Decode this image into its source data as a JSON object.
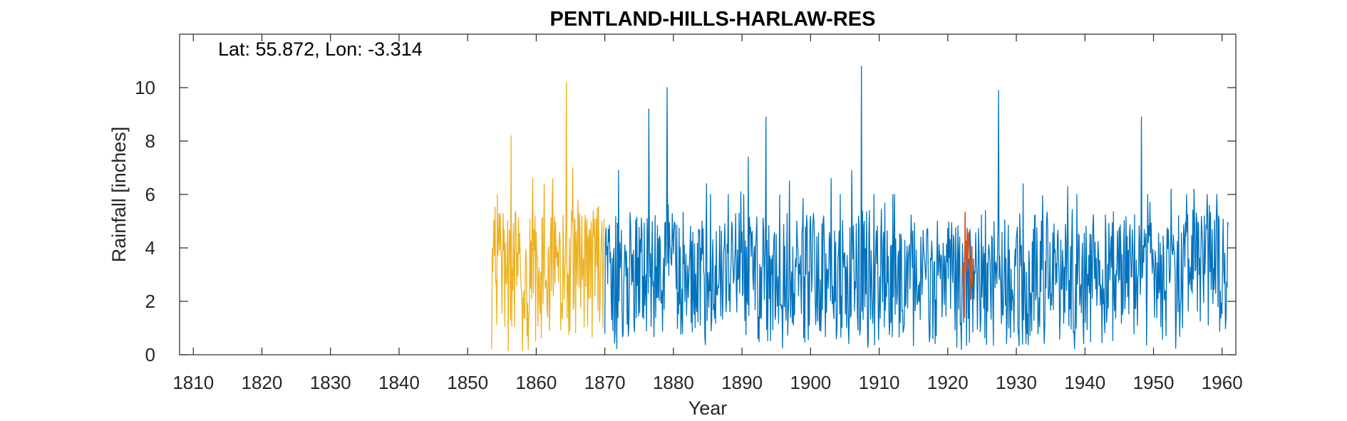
{
  "chart_data": {
    "type": "line",
    "title": "PENTLAND-HILLS-HARLAW-RES",
    "xlabel": "Year",
    "ylabel": "Rainfall [inches]",
    "annotation": "Lat: 55.872, Lon: -3.314",
    "xlim": [
      1808,
      1962
    ],
    "ylim": [
      0,
      12
    ],
    "xticks": [
      1810,
      1820,
      1830,
      1840,
      1850,
      1860,
      1870,
      1880,
      1890,
      1900,
      1910,
      1920,
      1930,
      1940,
      1950,
      1960
    ],
    "yticks": [
      0,
      2,
      4,
      6,
      8,
      10
    ],
    "grid": false,
    "legend": "none",
    "series": [
      {
        "color": "#EDB120",
        "x_range": [
          1853.5,
          1869.9
        ],
        "samples_per_year": 12,
        "mean": 2.9,
        "peaks": [
          [
            1854.3,
            6.0
          ],
          [
            1855.2,
            5.3
          ],
          [
            1855.9,
            0.15
          ],
          [
            1856.3,
            8.2
          ],
          [
            1858.8,
            0.2
          ],
          [
            1859.5,
            6.6
          ],
          [
            1861.2,
            6.4
          ],
          [
            1862.4,
            6.6
          ],
          [
            1864.4,
            10.2
          ],
          [
            1865.3,
            7.0
          ],
          [
            1866.1,
            5.8
          ],
          [
            1868.3,
            5.4
          ]
        ]
      },
      {
        "color": "#0072BD",
        "x_range": [
          1870.0,
          1960.9
        ],
        "samples_per_year": 12,
        "mean": 2.8,
        "peaks": [
          [
            1872.0,
            6.9
          ],
          [
            1876.4,
            9.2
          ],
          [
            1879.1,
            10.0
          ],
          [
            1884.8,
            6.4
          ],
          [
            1889.8,
            6.1
          ],
          [
            1890.9,
            7.4
          ],
          [
            1893.5,
            8.9
          ],
          [
            1896.9,
            6.5
          ],
          [
            1903.0,
            6.6
          ],
          [
            1906.0,
            6.9
          ],
          [
            1907.4,
            10.8
          ],
          [
            1912.0,
            6.0
          ],
          [
            1923.2,
            4.7
          ],
          [
            1927.4,
            9.9
          ],
          [
            1931.0,
            6.4
          ],
          [
            1937.5,
            6.3
          ],
          [
            1948.2,
            8.9
          ],
          [
            1952.6,
            6.2
          ],
          [
            1955.9,
            6.2
          ],
          [
            1957.8,
            6.0
          ],
          [
            1959.5,
            5.2
          ]
        ]
      },
      {
        "color": "#D95319",
        "x_range": [
          1922.2,
          1923.6
        ],
        "samples_per_year": 12,
        "mean": 2.8,
        "peaks": [
          [
            1923.1,
            4.6
          ],
          [
            1922.6,
            3.6
          ]
        ]
      }
    ]
  }
}
